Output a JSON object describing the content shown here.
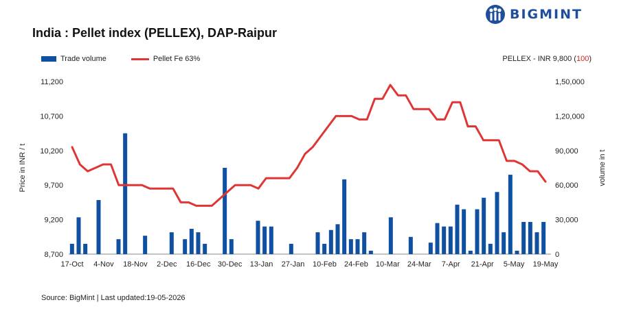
{
  "brand": {
    "name": "BIGMINT",
    "color": "#1f4e9c"
  },
  "header": {
    "title": "India : Pellet index (PELLEX), DAP-Raipur",
    "pellex_prefix": "PELLEX - INR 9,800 (",
    "pellex_change": "100",
    "pellex_suffix": ")"
  },
  "legend": {
    "bar_label": "Trade volume",
    "line_label": "Pellet Fe 63%"
  },
  "footer": {
    "source": "Source: BigMint | Last updated:19-05-2026"
  },
  "colors": {
    "bar": "#1050a0",
    "line": "#e03535",
    "change": "#d42020"
  },
  "chart_data": {
    "type": "bar+line",
    "ylabel_left": "Price in INR / t",
    "ylabel_right": "volume in t",
    "y_left_range": [
      8700,
      11200
    ],
    "y_left_ticks": [
      "8,700",
      "9,200",
      "9,700",
      "10,200",
      "10,700",
      "11,200"
    ],
    "y_right_range": [
      0,
      150000
    ],
    "y_right_ticks": [
      "0",
      "30,000",
      "60,000",
      "90,000",
      "1,20,000",
      "1,50,000"
    ],
    "x_tick_labels": [
      "17-Oct",
      "4-Nov",
      "18-Nov",
      "2-Dec",
      "16-Dec",
      "30-Dec",
      "13-Jan",
      "27-Jan",
      "10-Feb",
      "24-Feb",
      "10-Mar",
      "24-Mar",
      "7-Apr",
      "21-Apr",
      "5-May",
      "19-May"
    ],
    "series": [
      {
        "name": "Pellet Fe 63%",
        "type": "line",
        "axis": "left",
        "values": [
          10250,
          10000,
          9900,
          9950,
          10000,
          10000,
          9700,
          9700,
          9700,
          9700,
          9650,
          9650,
          9650,
          9650,
          9450,
          9450,
          9400,
          9400,
          9400,
          9500,
          9600,
          9700,
          9700,
          9700,
          9650,
          9800,
          9800,
          9800,
          9800,
          9950,
          10150,
          10250,
          10400,
          10550,
          10700,
          10700,
          10700,
          10650,
          10650,
          10950,
          10950,
          11150,
          11000,
          11000,
          10800,
          10800,
          10800,
          10650,
          10650,
          10900,
          10900,
          10550,
          10550,
          10350,
          10350,
          10350,
          10050,
          10050,
          10000,
          9900,
          9900,
          9750
        ],
        "x_index": [
          0,
          1,
          2,
          3,
          4,
          5,
          6,
          7,
          8,
          9,
          10,
          11,
          12,
          13,
          14,
          15,
          16,
          17,
          18,
          19,
          20,
          21,
          22,
          23,
          24,
          25,
          26,
          27,
          28,
          29,
          30,
          31,
          32,
          33,
          34,
          35,
          36,
          37,
          38,
          39,
          40,
          41,
          42,
          43,
          44,
          45,
          46,
          47,
          48,
          49,
          50,
          51,
          52,
          53,
          54,
          55,
          56,
          57,
          58,
          59,
          60,
          61
        ]
      },
      {
        "name": "Trade volume",
        "type": "bar",
        "axis": "right",
        "values": [
          9000,
          32000,
          9000,
          0,
          47000,
          0,
          0,
          13000,
          105000,
          0,
          0,
          16000,
          0,
          0,
          0,
          19000,
          0,
          13000,
          22000,
          19000,
          9000,
          0,
          0,
          75000,
          13000,
          0,
          0,
          0,
          29000,
          24000,
          24000,
          0,
          0,
          9000,
          0,
          0,
          0,
          19000,
          9000,
          21000,
          26000,
          65000,
          13000,
          13000,
          19000,
          3000,
          0,
          0,
          32000,
          0,
          0,
          15000,
          0,
          0,
          10000,
          27000,
          24000,
          24000,
          43000,
          39000,
          3000,
          39000,
          49000,
          9000,
          54000,
          19000,
          69000,
          3000,
          28000,
          28000,
          19000,
          28000
        ],
        "x_index": [
          0,
          1,
          2,
          3,
          4,
          5,
          6,
          7,
          8,
          9,
          10,
          11,
          12,
          13,
          14,
          15,
          16,
          17,
          18,
          19,
          20,
          21,
          22,
          23,
          24,
          25,
          26,
          27,
          28,
          29,
          30,
          31,
          32,
          33,
          34,
          35,
          36,
          37,
          38,
          39,
          40,
          41,
          42,
          43,
          44,
          45,
          46,
          47,
          48,
          49,
          50,
          51,
          52,
          53,
          54,
          55,
          56,
          57,
          58,
          59,
          60,
          61,
          62,
          63,
          64,
          65,
          66,
          67,
          68,
          69,
          70,
          71
        ]
      }
    ],
    "grid": false,
    "legend_position": "top-left"
  }
}
